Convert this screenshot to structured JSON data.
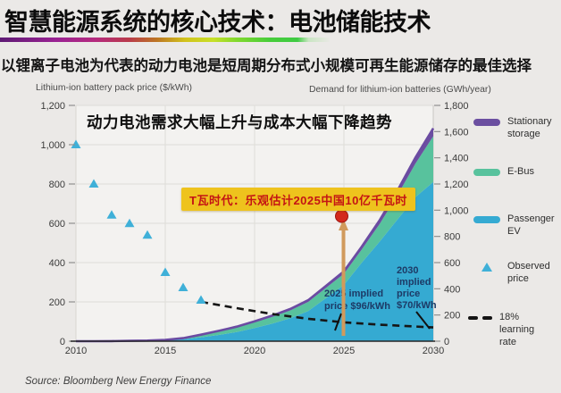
{
  "slide": {
    "title": "智慧能源系统的核心技术：电池储能技术",
    "subtitle": "以锂离子电池为代表的动力电池是短周期分布式小规模可再生能源储存的最佳选择",
    "source": "Source: Bloomberg New Energy Finance"
  },
  "chart": {
    "title": "动力电池需求大幅上升与成本大幅下降趋势",
    "callout": "T瓦时代：乐观估计2025中国10亿千瓦时",
    "implied_2025": {
      "lines": [
        "2025 implied",
        "price $96/kWh"
      ]
    },
    "implied_2030": {
      "lines": [
        "2030",
        "implied",
        "price",
        "$70/kWh"
      ]
    },
    "legend": {
      "items": [
        {
          "label_lines": [
            "Stationary",
            "storage"
          ],
          "color": "#6b4fa0",
          "swatch": "bar"
        },
        {
          "label_lines": [
            "E-Bus"
          ],
          "color": "#58c29d",
          "swatch": "bar"
        },
        {
          "label_lines": [
            "Passenger",
            "EV"
          ],
          "color": "#35aad2",
          "swatch": "bar"
        },
        {
          "label_lines": [
            "Observed",
            "price"
          ],
          "color": "#3fb0d8",
          "swatch": "triangle"
        },
        {
          "label_lines": [
            "18%",
            "learning",
            "rate"
          ],
          "color": "#111111",
          "swatch": "dashes"
        }
      ]
    }
  },
  "chart_data": {
    "type": "area",
    "title": "动力电池需求大幅上升与成本大幅下降趋势",
    "legend_position": "right",
    "grid": "light gray horizontal every 200 $/kWh, vertical at 2015/2020/2025",
    "x": [
      2010,
      2011,
      2012,
      2013,
      2014,
      2015,
      2016,
      2017,
      2018,
      2019,
      2020,
      2021,
      2022,
      2023,
      2024,
      2025,
      2026,
      2027,
      2028,
      2029,
      2030
    ],
    "series": [
      {
        "name": "Passenger EV",
        "type": "stacked-area",
        "axis": "right",
        "color": "#35aad2",
        "values": [
          0,
          0,
          1,
          2,
          3,
          6,
          14,
          30,
          48,
          70,
          100,
          135,
          175,
          230,
          330,
          430,
          600,
          760,
          930,
          1100,
          1215
        ]
      },
      {
        "name": "E-Bus",
        "type": "stacked-area",
        "axis": "right",
        "color": "#58c29d",
        "values": [
          0,
          0,
          0,
          1,
          2,
          3,
          8,
          18,
          28,
          36,
          45,
          52,
          60,
          70,
          78,
          85,
          100,
          135,
          185,
          255,
          350
        ]
      },
      {
        "name": "Stationary storage",
        "type": "stacked-area",
        "axis": "right",
        "color": "#6b4fa0",
        "values": [
          0,
          0,
          0,
          0,
          0,
          1,
          1,
          2,
          3,
          5,
          7,
          9,
          11,
          13,
          15,
          18,
          22,
          28,
          36,
          46,
          60
        ]
      },
      {
        "name": "Observed price",
        "type": "scatter",
        "axis": "left",
        "color": "#3fb0d8",
        "points": [
          [
            2010,
            1000
          ],
          [
            2011,
            800
          ],
          [
            2012,
            642
          ],
          [
            2013,
            599
          ],
          [
            2014,
            540
          ],
          [
            2015,
            350
          ],
          [
            2016,
            273
          ],
          [
            2017,
            209
          ]
        ]
      },
      {
        "name": "18% learning rate",
        "type": "dashed-line",
        "axis": "left",
        "color": "#111111",
        "points": [
          [
            2017,
            200
          ],
          [
            2019,
            168
          ],
          [
            2021,
            138
          ],
          [
            2023,
            114
          ],
          [
            2025,
            96
          ],
          [
            2027,
            84
          ],
          [
            2030,
            70
          ]
        ]
      }
    ],
    "left_axis": {
      "title": "Lithium-ion battery pack price ($/kWh)",
      "range": [
        0,
        1200
      ],
      "tick_values": [
        0,
        200,
        400,
        600,
        800,
        1000,
        1200
      ],
      "tick_labels": [
        "0",
        "200",
        "400",
        "600",
        "800",
        "1,000",
        "1,200"
      ]
    },
    "right_axis": {
      "title": "Demand for lithium-ion batteries (GWh/year)",
      "range": [
        0,
        1800
      ],
      "tick_values": [
        0,
        200,
        400,
        600,
        800,
        1000,
        1200,
        1400,
        1600,
        1800
      ],
      "tick_labels": [
        "0",
        "200",
        "400",
        "600",
        "800",
        "1,000",
        "1,200",
        "1,400",
        "1,600",
        "1,800"
      ]
    },
    "x_axis": {
      "range": [
        2010,
        2030
      ],
      "tick_values": [
        2010,
        2015,
        2020,
        2025,
        2030
      ],
      "tick_labels": [
        "2010",
        "2015",
        "2020",
        "2025",
        "2030"
      ],
      "grid_years": [
        2015,
        2020,
        2025
      ]
    },
    "annotations": {
      "callout": "T瓦时代：乐观估计2025中国10亿千瓦时",
      "callout_marker": {
        "x": 2025,
        "shape": "red-circle-with-upward-arrow"
      },
      "implied_2025": "2025 implied price $96/kWh",
      "implied_2030": "2030 implied price $70/kWh"
    }
  }
}
